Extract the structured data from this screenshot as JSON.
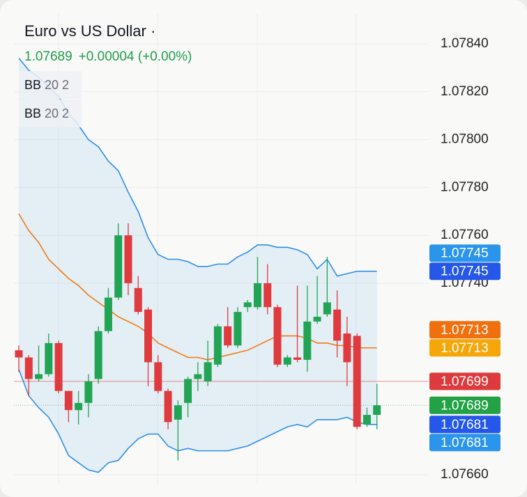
{
  "chart_data": {
    "type": "candlestick",
    "title": "Euro vs US Dollar ·",
    "price": "1.07689",
    "change": "+0.00004 (+0.00%)",
    "indicators": [
      {
        "name": "BB",
        "params": "20 2"
      },
      {
        "name": "BB",
        "params": "20 2"
      }
    ],
    "up_color": "#22a455",
    "down_color": "#df3a3d",
    "open": [
      1.07712,
      1.07709,
      1.077,
      1.07702,
      1.07715,
      1.07695,
      1.07687,
      1.0769,
      1.077,
      1.0772,
      1.07734,
      1.0776,
      1.07738,
      1.07729,
      1.07707,
      1.07695,
      1.07683,
      1.0769,
      1.077,
      1.07699,
      1.07706,
      1.07722,
      1.07714,
      1.0773,
      1.0773,
      1.0774,
      1.0773,
      1.07706,
      1.07709,
      1.07708,
      1.07724,
      1.07727,
      1.07729,
      1.07719,
      1.07718,
      1.07681,
      1.07685
    ],
    "high": [
      1.07714,
      1.0771,
      1.07714,
      1.07719,
      1.07716,
      1.07695,
      1.07695,
      1.07702,
      1.07722,
      1.07738,
      1.07765,
      1.07765,
      1.07743,
      1.0773,
      1.0771,
      1.07696,
      1.07691,
      1.07701,
      1.07707,
      1.07716,
      1.07723,
      1.0773,
      1.0773,
      1.07733,
      1.07751,
      1.07748,
      1.07731,
      1.0771,
      1.07739,
      1.07739,
      1.07743,
      1.07751,
      1.07737,
      1.07726,
      1.07719,
      1.07688,
      1.07698
    ],
    "low": [
      1.07703,
      1.07693,
      1.07699,
      1.07701,
      1.07694,
      1.07682,
      1.07681,
      1.07684,
      1.07698,
      1.07719,
      1.07733,
      1.07735,
      1.07727,
      1.07697,
      1.07694,
      1.07679,
      1.07666,
      1.07684,
      1.07695,
      1.07697,
      1.07705,
      1.07713,
      1.07713,
      1.07728,
      1.07729,
      1.07727,
      1.07705,
      1.07705,
      1.07707,
      1.07703,
      1.07723,
      1.07726,
      1.07709,
      1.07697,
      1.07679,
      1.0768,
      1.07679
    ],
    "close": [
      1.07709,
      1.077,
      1.07702,
      1.07715,
      1.07695,
      1.07687,
      1.0769,
      1.07699,
      1.0772,
      1.07734,
      1.0776,
      1.0774,
      1.07728,
      1.07707,
      1.07695,
      1.07682,
      1.07689,
      1.077,
      1.07702,
      1.07707,
      1.07722,
      1.07714,
      1.07728,
      1.07732,
      1.0774,
      1.0773,
      1.07706,
      1.07709,
      1.07708,
      1.07724,
      1.07726,
      1.07732,
      1.07716,
      1.07707,
      1.0768,
      1.07685,
      1.07689
    ],
    "bands": {
      "line_color": "#2f8fe6",
      "fill_color": "rgba(47,143,230,0.10)",
      "middle_color": "#f07b12",
      "upper": [
        1.07834,
        1.07829,
        1.07826,
        1.07822,
        1.07818,
        1.07811,
        1.07806,
        1.078,
        1.07797,
        1.07791,
        1.07787,
        1.07778,
        1.0777,
        1.07759,
        1.07752,
        1.0775,
        1.0775,
        1.07749,
        1.07747,
        1.07747,
        1.07748,
        1.07748,
        1.07751,
        1.07753,
        1.07756,
        1.07756,
        1.07755,
        1.07755,
        1.07754,
        1.07752,
        1.07746,
        1.0775,
        1.07743,
        1.07744,
        1.07745,
        1.07745,
        1.07745
      ],
      "middle": [
        1.07769,
        1.07762,
        1.07757,
        1.0775,
        1.07746,
        1.07742,
        1.07739,
        1.07735,
        1.07732,
        1.07729,
        1.07726,
        1.07724,
        1.07722,
        1.07719,
        1.07715,
        1.07713,
        1.07711,
        1.07709,
        1.07709,
        1.07708,
        1.07709,
        1.0771,
        1.07711,
        1.07712,
        1.07714,
        1.07716,
        1.07718,
        1.07718,
        1.07718,
        1.07717,
        1.07715,
        1.07715,
        1.07714,
        1.07714,
        1.07713,
        1.07713,
        1.07713
      ],
      "lower": [
        1.07704,
        1.07693,
        1.07688,
        1.07684,
        1.07677,
        1.07668,
        1.07665,
        1.07662,
        1.07661,
        1.07665,
        1.07666,
        1.07671,
        1.07675,
        1.07677,
        1.07677,
        1.07672,
        1.0767,
        1.07671,
        1.0767,
        1.0767,
        1.0767,
        1.0767,
        1.07671,
        1.07672,
        1.07674,
        1.07676,
        1.07678,
        1.0768,
        1.07681,
        1.0768,
        1.07683,
        1.07683,
        1.07683,
        1.07684,
        1.07682,
        1.07681,
        1.07681
      ]
    },
    "ylim": [
      1.0765,
      1.0786
    ],
    "yticks": [
      {
        "value": 1.0784,
        "label": "1.07840"
      },
      {
        "value": 1.0782,
        "label": "1.07820"
      },
      {
        "value": 1.078,
        "label": "1.07800"
      },
      {
        "value": 1.0778,
        "label": "1.07780"
      },
      {
        "value": 1.0776,
        "label": "1.07760"
      },
      {
        "value": 1.0774,
        "label": "1.07740"
      },
      {
        "value": 1.0766,
        "label": "1.07660"
      }
    ],
    "grid": true,
    "price_tags": [
      {
        "value": 1.07745,
        "color": "#2b95ec"
      },
      {
        "value": 1.07745,
        "color": "#2557e8"
      },
      {
        "value": 1.07713,
        "color": "#f0700f"
      },
      {
        "value": 1.07713,
        "color": "#f5a70a"
      },
      {
        "value": 1.07699,
        "color": "#dd3a3d",
        "line": "solid"
      },
      {
        "value": 1.07689,
        "color": "#22a145",
        "line": "dotted"
      },
      {
        "value": 1.07681,
        "color": "#2557e8"
      },
      {
        "value": 1.07681,
        "color": "#2b95ec"
      }
    ]
  }
}
